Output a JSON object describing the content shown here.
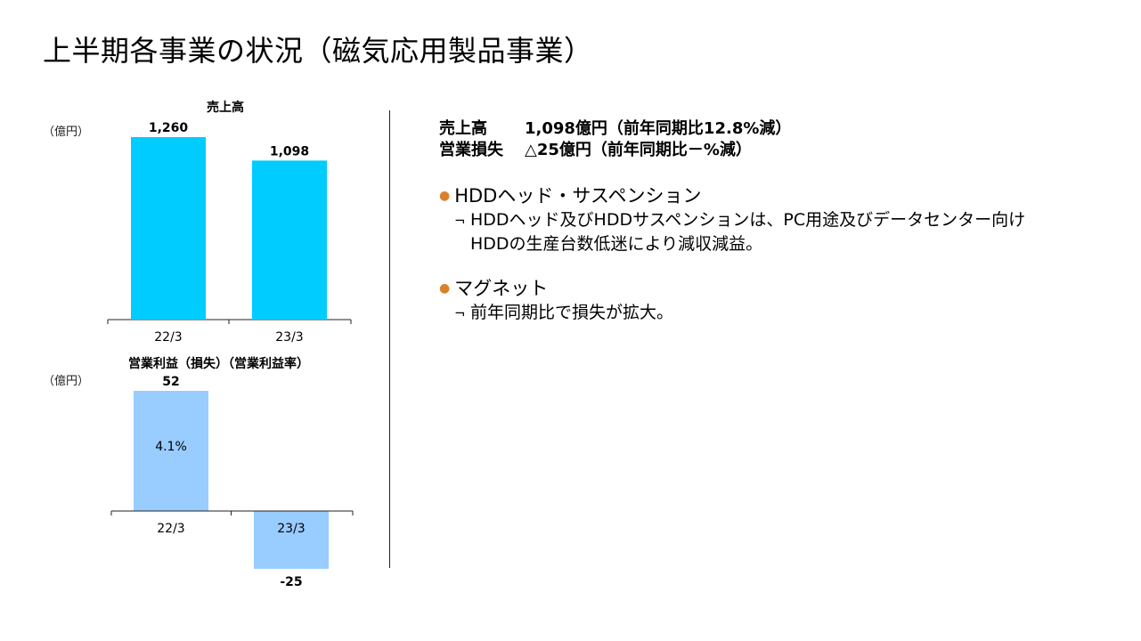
{
  "page": {
    "title": "上半期各事業の状況（磁気応用製品事業）"
  },
  "colors": {
    "revenue_bar": "#00CCFF",
    "profit_bar": "#99CCFF",
    "bullet": "#D9822B",
    "axis": "#222222"
  },
  "chart_data": [
    {
      "type": "bar",
      "title": "売上高",
      "unit": "（億円）",
      "categories": [
        "22/3",
        "23/3"
      ],
      "values": [
        1260,
        1098
      ],
      "value_labels": [
        "1,260",
        "1,098"
      ],
      "ylim": [
        0,
        1300
      ]
    },
    {
      "type": "bar",
      "title": "営業利益（損失）（営業利益率）",
      "unit": "（億円）",
      "categories": [
        "22/3",
        "23/3"
      ],
      "values": [
        52,
        -25
      ],
      "value_labels": [
        "52",
        "-25"
      ],
      "inner_labels": [
        "4.1%",
        ""
      ],
      "ylim": [
        -25,
        52
      ]
    }
  ],
  "summary": {
    "sales_label": "売上高",
    "sales_text": "1,098億円（前年同期比12.8%減）",
    "loss_label": "営業損失",
    "loss_text": "△25億円（前年同期比－%減）"
  },
  "sections": [
    {
      "heading": "HDDヘッド・サスペンション",
      "mark": "¬",
      "line1": "HDDヘッド及びHDDサスペンションは、PC用途及びデータセンター向け",
      "line2": "HDDの生産台数低迷により減収減益。"
    },
    {
      "heading": "マグネット",
      "mark": "¬",
      "line1": "前年同期比で損失が拡大。"
    }
  ]
}
